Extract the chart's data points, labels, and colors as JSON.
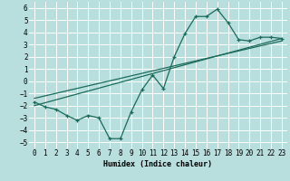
{
  "title": "",
  "xlabel": "Humidex (Indice chaleur)",
  "ylabel": "",
  "background_color": "#b8dede",
  "grid_color": "#ffffff",
  "line_color": "#1a6b5a",
  "xlim": [
    -0.5,
    23.5
  ],
  "ylim": [
    -5.5,
    6.5
  ],
  "xticks": [
    0,
    1,
    2,
    3,
    4,
    5,
    6,
    7,
    8,
    9,
    10,
    11,
    12,
    13,
    14,
    15,
    16,
    17,
    18,
    19,
    20,
    21,
    22,
    23
  ],
  "yticks": [
    -5,
    -4,
    -3,
    -2,
    -1,
    0,
    1,
    2,
    3,
    4,
    5,
    6
  ],
  "line1_x": [
    0,
    1,
    2,
    3,
    4,
    5,
    6,
    7,
    8,
    9,
    10,
    11,
    12,
    13,
    14,
    15,
    16,
    17,
    18,
    19,
    20,
    21,
    22,
    23
  ],
  "line1_y": [
    -1.7,
    -2.1,
    -2.3,
    -2.8,
    -3.2,
    -2.8,
    -3.0,
    -4.7,
    -4.7,
    -2.5,
    -0.7,
    0.5,
    -0.6,
    2.0,
    3.9,
    5.3,
    5.3,
    5.9,
    4.8,
    3.4,
    3.3,
    3.6,
    3.6,
    3.5
  ],
  "line2_x": [
    0,
    23
  ],
  "line2_y": [
    -2.0,
    3.5
  ],
  "line3_x": [
    0,
    23
  ],
  "line3_y": [
    -1.4,
    3.3
  ]
}
